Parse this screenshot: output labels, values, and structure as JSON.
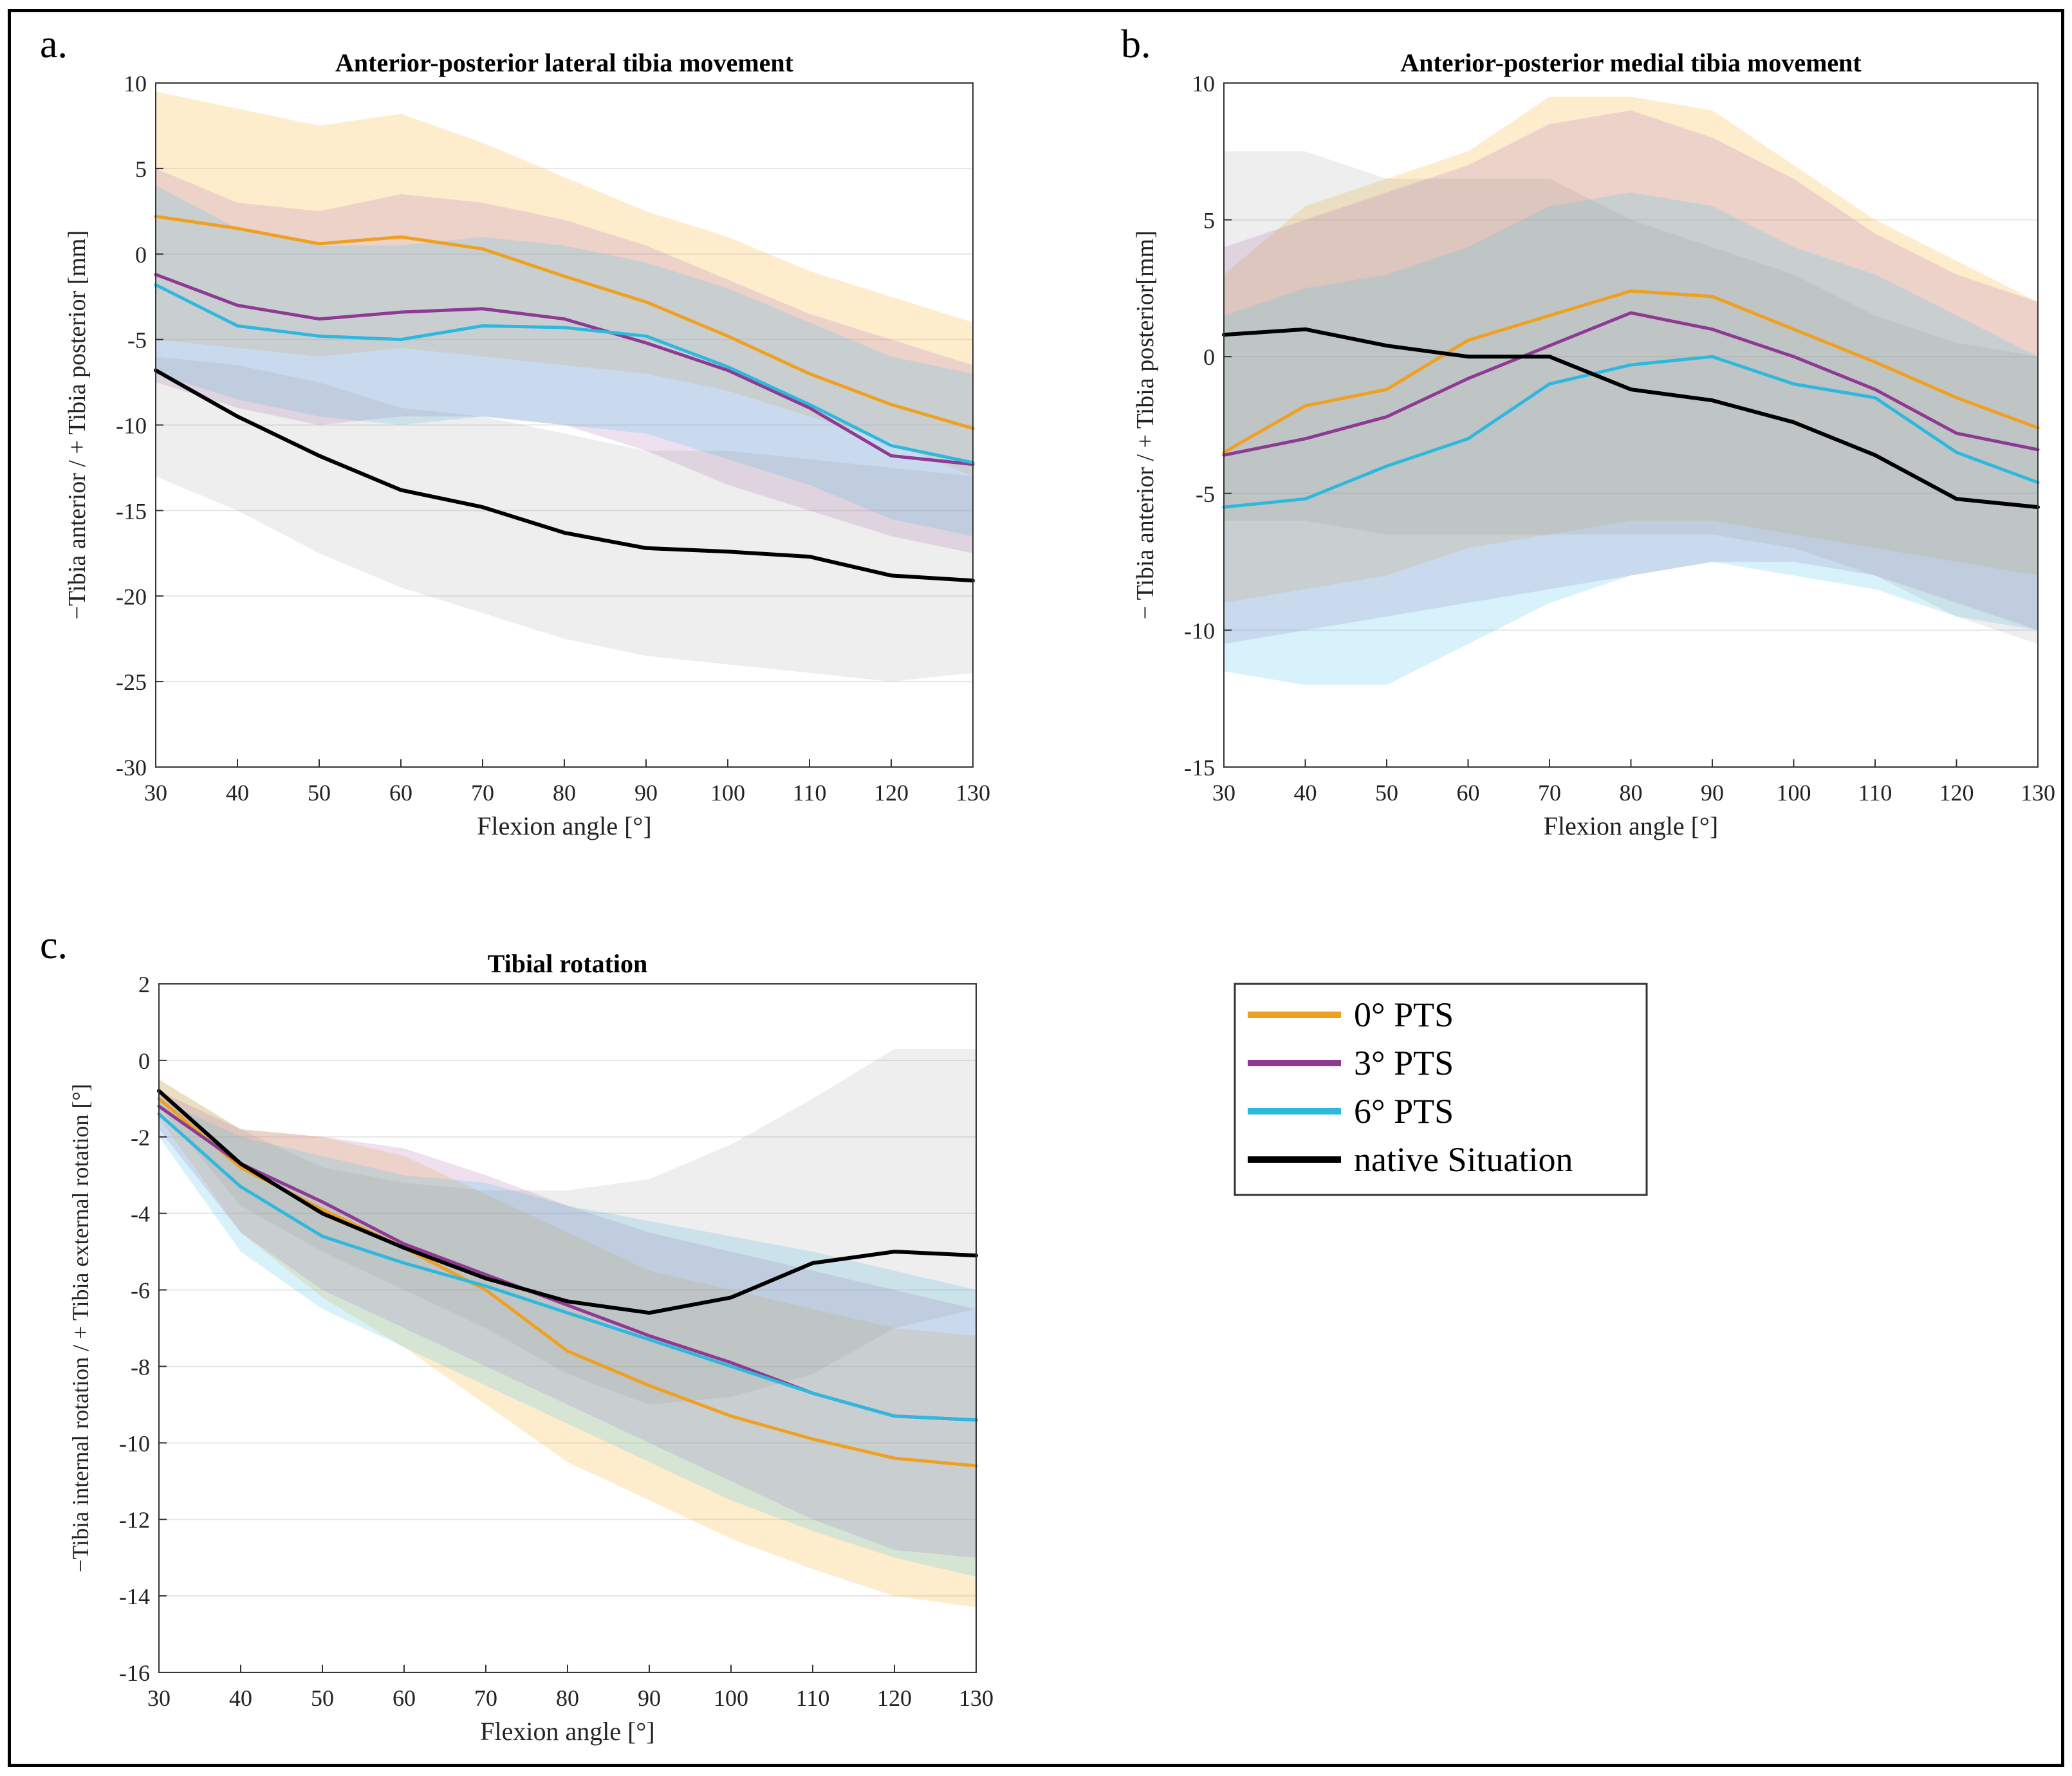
{
  "figure": {
    "panel_labels": [
      "a.",
      "b.",
      "c."
    ],
    "legend": [
      {
        "label": "0° PTS",
        "color": "#F0A020"
      },
      {
        "label": "3° PTS",
        "color": "#8E3A93"
      },
      {
        "label": "6° PTS",
        "color": "#2FB8DE"
      },
      {
        "label": "native Situation",
        "color": "#000000"
      }
    ]
  },
  "chart_data": [
    {
      "type": "line",
      "panel": "a.",
      "title": "Anterior-posterior lateral tibia movement",
      "xlabel": "Flexion angle [°]",
      "ylabel": "−Tibia anterior / + Tibia posterior  [mm]",
      "xlim": [
        30,
        130
      ],
      "ylim": [
        -30,
        10
      ],
      "xticks": [
        30,
        40,
        50,
        60,
        70,
        80,
        90,
        100,
        110,
        120,
        130
      ],
      "yticks": [
        10,
        5,
        0,
        -5,
        -10,
        -15,
        -20,
        -25,
        -30
      ],
      "grid": true,
      "x": [
        30,
        40,
        50,
        60,
        70,
        80,
        90,
        100,
        110,
        120,
        130
      ],
      "series": [
        {
          "name": "0° PTS",
          "color": "#F0A020",
          "values": [
            2.2,
            1.5,
            0.6,
            1.0,
            0.3,
            -1.3,
            -2.8,
            -4.8,
            -7.0,
            -8.8,
            -10.2
          ],
          "lower": [
            -5,
            -5.5,
            -6,
            -5.5,
            -6,
            -6.5,
            -7,
            -8,
            -9.5,
            -11,
            -13
          ],
          "upper": [
            9.5,
            8.5,
            7.5,
            8.2,
            6.5,
            4.5,
            2.5,
            1,
            -1,
            -2.5,
            -4
          ]
        },
        {
          "name": "3° PTS",
          "color": "#8E3A93",
          "values": [
            -1.2,
            -3.0,
            -3.8,
            -3.4,
            -3.2,
            -3.8,
            -5.2,
            -6.8,
            -9.0,
            -11.8,
            -12.3
          ],
          "lower": [
            -7.5,
            -9,
            -10,
            -9.5,
            -9.5,
            -10,
            -11.5,
            -13.5,
            -15,
            -16.5,
            -17.5
          ],
          "upper": [
            5,
            3,
            2.5,
            3.5,
            3,
            2,
            0.5,
            -1.5,
            -3.5,
            -5,
            -6.5
          ]
        },
        {
          "name": "6° PTS",
          "color": "#2FB8DE",
          "values": [
            -1.8,
            -4.2,
            -4.8,
            -5.0,
            -4.2,
            -4.3,
            -4.8,
            -6.6,
            -8.8,
            -11.2,
            -12.2
          ],
          "lower": [
            -7,
            -8.5,
            -9.5,
            -10,
            -9.5,
            -10,
            -10.5,
            -12,
            -13.5,
            -15.5,
            -16.5
          ],
          "upper": [
            4,
            1.5,
            0.5,
            0.5,
            1,
            0.5,
            -0.5,
            -2,
            -4,
            -6,
            -7
          ]
        },
        {
          "name": "native Situation",
          "color": "#000000",
          "values": [
            -6.8,
            -9.5,
            -11.8,
            -13.8,
            -14.8,
            -16.3,
            -17.2,
            -17.4,
            -17.7,
            -18.8,
            -19.1
          ],
          "lower": [
            -13,
            -15,
            -17.5,
            -19.5,
            -21,
            -22.5,
            -23.5,
            -24,
            -24.5,
            -25,
            -24.5
          ],
          "upper": [
            -6,
            -6.5,
            -7.5,
            -9,
            -9.5,
            -10.5,
            -11.5,
            -11.5,
            -12,
            -12.5,
            -13
          ]
        }
      ]
    },
    {
      "type": "line",
      "panel": "b.",
      "title": "Anterior-posterior medial tibia movement",
      "xlabel": "Flexion angle [°]",
      "ylabel": "− Tibia anterior / + Tibia posterior[mm]",
      "xlim": [
        30,
        130
      ],
      "ylim": [
        -15,
        10
      ],
      "xticks": [
        30,
        40,
        50,
        60,
        70,
        80,
        90,
        100,
        110,
        120,
        130
      ],
      "yticks": [
        10,
        5,
        0,
        -5,
        -10,
        -15
      ],
      "grid": true,
      "x": [
        30,
        40,
        50,
        60,
        70,
        80,
        90,
        100,
        110,
        120,
        130
      ],
      "series": [
        {
          "name": "0° PTS",
          "color": "#F0A020",
          "values": [
            -3.5,
            -1.8,
            -1.2,
            0.6,
            1.5,
            2.4,
            2.2,
            1.0,
            -0.2,
            -1.5,
            -2.6
          ],
          "lower": [
            -9,
            -8.5,
            -8,
            -7,
            -6.5,
            -6,
            -6,
            -6.5,
            -7,
            -7.5,
            -8
          ],
          "upper": [
            3,
            5.5,
            6.5,
            7.5,
            9.5,
            9.5,
            9,
            7,
            5,
            3.5,
            2
          ]
        },
        {
          "name": "3° PTS",
          "color": "#8E3A93",
          "values": [
            -3.6,
            -3.0,
            -2.2,
            -0.8,
            0.4,
            1.6,
            1.0,
            0.0,
            -1.2,
            -2.8,
            -3.4
          ],
          "lower": [
            -10.5,
            -10,
            -9.5,
            -9,
            -8.5,
            -8,
            -7.5,
            -7.5,
            -8,
            -9,
            -10
          ],
          "upper": [
            4,
            5,
            6,
            7,
            8.5,
            9,
            8,
            6.5,
            4.5,
            3,
            2
          ]
        },
        {
          "name": "6° PTS",
          "color": "#2FB8DE",
          "values": [
            -5.5,
            -5.2,
            -4.0,
            -3.0,
            -1.0,
            -0.3,
            0.0,
            -1.0,
            -1.5,
            -3.5,
            -4.6
          ],
          "lower": [
            -11.5,
            -12,
            -12,
            -10.5,
            -9,
            -8,
            -7.5,
            -8,
            -8.5,
            -9.5,
            -10
          ],
          "upper": [
            1.5,
            2.5,
            3,
            4,
            5.5,
            6,
            5.5,
            4,
            3,
            1.5,
            0
          ]
        },
        {
          "name": "native Situation",
          "color": "#000000",
          "values": [
            0.8,
            1.0,
            0.4,
            0.0,
            0.0,
            -1.2,
            -1.6,
            -2.4,
            -3.6,
            -5.2,
            -5.5
          ],
          "lower": [
            -6,
            -6,
            -6.5,
            -6.5,
            -6.5,
            -6.5,
            -6.5,
            -7,
            -8,
            -9.5,
            -10.5
          ],
          "upper": [
            7.5,
            7.5,
            6.5,
            6.5,
            6.5,
            5,
            4,
            3,
            1.5,
            0.5,
            0
          ]
        }
      ]
    },
    {
      "type": "line",
      "panel": "c.",
      "title": "Tibial rotation",
      "xlabel": "Flexion angle [°]",
      "ylabel": "−Tibia internal rotation / + Tibia external rotation [°]",
      "xlim": [
        30,
        130
      ],
      "ylim": [
        -16,
        2
      ],
      "xticks": [
        30,
        40,
        50,
        60,
        70,
        80,
        90,
        100,
        110,
        120,
        130
      ],
      "yticks": [
        2,
        0,
        -2,
        -4,
        -6,
        -8,
        -10,
        -12,
        -14,
        -16
      ],
      "grid": true,
      "x": [
        30,
        40,
        50,
        60,
        70,
        80,
        90,
        100,
        110,
        120,
        130
      ],
      "series": [
        {
          "name": "0° PTS",
          "color": "#F0A020",
          "values": [
            -1.0,
            -2.8,
            -3.9,
            -4.9,
            -6.0,
            -7.6,
            -8.5,
            -9.3,
            -9.9,
            -10.4,
            -10.6
          ],
          "lower": [
            -1.5,
            -4.5,
            -6.2,
            -7.5,
            -9,
            -10.5,
            -11.5,
            -12.5,
            -13.3,
            -14,
            -14.3
          ],
          "upper": [
            -0.5,
            -1.8,
            -2.0,
            -2.5,
            -3.5,
            -4.5,
            -5.5,
            -6,
            -6.5,
            -7,
            -7.2
          ]
        },
        {
          "name": "3° PTS",
          "color": "#8E3A93",
          "values": [
            -1.2,
            -2.7,
            -3.7,
            -4.8,
            -5.6,
            -6.4,
            -7.2,
            -7.9,
            -8.7,
            -9.3,
            -9.4
          ],
          "lower": [
            -1.8,
            -4.5,
            -6,
            -7,
            -8,
            -9,
            -10,
            -11,
            -12,
            -12.8,
            -13
          ],
          "upper": [
            -0.8,
            -1.8,
            -2.0,
            -2.3,
            -3.0,
            -3.8,
            -4.5,
            -5.0,
            -5.5,
            -6.0,
            -6.5
          ]
        },
        {
          "name": "6° PTS",
          "color": "#2FB8DE",
          "values": [
            -1.4,
            -3.3,
            -4.6,
            -5.3,
            -5.9,
            -6.6,
            -7.3,
            -8.0,
            -8.7,
            -9.3,
            -9.4
          ],
          "lower": [
            -2,
            -5,
            -6.5,
            -7.5,
            -8.5,
            -9.5,
            -10.5,
            -11.5,
            -12.3,
            -13,
            -13.5
          ],
          "upper": [
            -1,
            -2,
            -2.5,
            -3,
            -3.2,
            -3.8,
            -4.2,
            -4.6,
            -5,
            -5.5,
            -6
          ]
        },
        {
          "name": "native Situation",
          "color": "#000000",
          "values": [
            -0.8,
            -2.7,
            -4.0,
            -4.9,
            -5.7,
            -6.3,
            -6.6,
            -6.2,
            -5.3,
            -5.0,
            -5.1
          ],
          "lower": [
            -1.2,
            -3.8,
            -5,
            -6,
            -7,
            -8.2,
            -9,
            -8.8,
            -8.2,
            -7,
            -6.5
          ],
          "upper": [
            -0.5,
            -1.8,
            -2.8,
            -3.2,
            -3.4,
            -3.4,
            -3.1,
            -2.2,
            -1.0,
            0.3,
            0.3
          ]
        }
      ]
    }
  ]
}
